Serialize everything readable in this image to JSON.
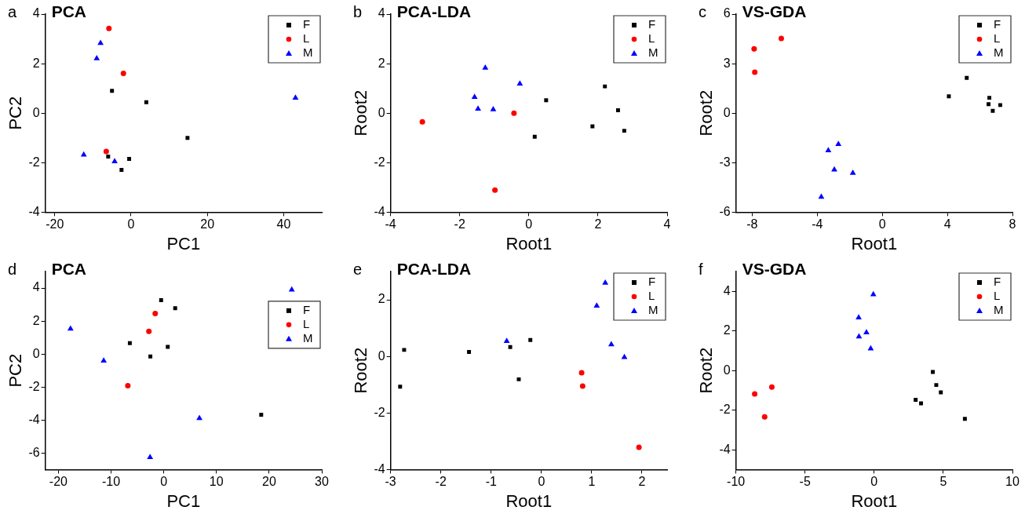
{
  "chart_data": [
    {
      "type": "scatter",
      "title": "PCA",
      "xlabel": "PC1",
      "ylabel": "PC2",
      "annotations": [
        "a"
      ],
      "xlim": [
        -22.5,
        50
      ],
      "xticks": [
        -20,
        0,
        20,
        40
      ],
      "ylim": [
        -4,
        4
      ],
      "yticks": [
        -4,
        -2,
        0,
        2,
        4
      ],
      "grid": false,
      "legend": "top right",
      "series": [
        {
          "name": "F",
          "color": "#000000",
          "marker": "square",
          "x": [
            -5,
            4,
            14.8,
            -6,
            -0.5,
            -2.5
          ],
          "values": [
            0.9,
            0.44,
            -1,
            -1.75,
            -1.85,
            -2.29
          ]
        },
        {
          "name": "L",
          "color": "#ff0000",
          "marker": "circle",
          "x": [
            -5.8,
            -2,
            -6.5
          ],
          "values": [
            3.42,
            1.61,
            -1.55
          ]
        },
        {
          "name": "M",
          "color": "#0000ff",
          "marker": "triangle",
          "x": [
            -8,
            -9,
            43.1,
            -12.4,
            -4.3
          ],
          "values": [
            2.83,
            2.21,
            0.62,
            -1.68,
            -1.95
          ]
        }
      ]
    },
    {
      "type": "scatter",
      "title": "PCA-LDA",
      "xlabel": "Root1",
      "ylabel": "Root2",
      "annotations": [
        "b"
      ],
      "xlim": [
        -4,
        4
      ],
      "xticks": [
        -4,
        -2,
        0,
        2,
        4
      ],
      "ylim": [
        -4,
        4
      ],
      "yticks": [
        -4,
        -2,
        0,
        2,
        4
      ],
      "grid": false,
      "legend": "top right",
      "series": [
        {
          "name": "F",
          "color": "#000000",
          "marker": "square",
          "x": [
            0.5,
            0.17,
            2.2,
            2.58,
            1.84,
            2.76
          ],
          "values": [
            0.52,
            -0.95,
            1.08,
            0.12,
            -0.53,
            -0.71
          ]
        },
        {
          "name": "L",
          "color": "#ff0000",
          "marker": "circle",
          "x": [
            -3.08,
            -0.43,
            -0.98
          ],
          "values": [
            -0.35,
            0,
            -3.11
          ]
        },
        {
          "name": "M",
          "color": "#0000ff",
          "marker": "triangle",
          "x": [
            -1.26,
            -0.26,
            -1.57,
            -1.47,
            -1.03
          ],
          "values": [
            1.83,
            1.19,
            0.65,
            0.17,
            0.15
          ]
        }
      ]
    },
    {
      "type": "scatter",
      "title": "VS-GDA",
      "xlabel": "Root1",
      "ylabel": "Root2",
      "annotations": [
        "c"
      ],
      "xlim": [
        -9,
        8
      ],
      "xticks": [
        -8,
        -4,
        0,
        4,
        8
      ],
      "ylim": [
        -6,
        6
      ],
      "yticks": [
        -6,
        -3,
        0,
        3,
        6
      ],
      "grid": false,
      "legend": "top right",
      "series": [
        {
          "name": "F",
          "color": "#000000",
          "marker": "square",
          "x": [
            4.09,
            5.19,
            6.58,
            6.53,
            6.79,
            7.25
          ],
          "values": [
            1.02,
            2.14,
            0.93,
            0.54,
            0.14,
            0.49
          ]
        },
        {
          "name": "L",
          "color": "#ff0000",
          "marker": "circle",
          "x": [
            -7.88,
            -6.21,
            -7.84
          ],
          "values": [
            3.9,
            4.53,
            2.48
          ]
        },
        {
          "name": "M",
          "color": "#0000ff",
          "marker": "triangle",
          "x": [
            -3.32,
            -2.7,
            -2.95,
            -1.81,
            -3.75
          ],
          "values": [
            -2.26,
            -1.88,
            -3.43,
            -3.63,
            -5.08
          ]
        }
      ]
    },
    {
      "type": "scatter",
      "title": "PCA",
      "xlabel": "PC1",
      "ylabel": "PC2",
      "annotations": [
        "d"
      ],
      "xlim": [
        -22.5,
        30
      ],
      "xticks": [
        -20,
        -10,
        0,
        10,
        20,
        30
      ],
      "ylim": [
        -7,
        5
      ],
      "yticks": [
        -6,
        -4,
        -2,
        0,
        2,
        4
      ],
      "grid": false,
      "legend": "right",
      "series": [
        {
          "name": "F",
          "color": "#000000",
          "marker": "square",
          "x": [
            -0.5,
            2.17,
            -6.44,
            0.76,
            -2.54,
            18.5
          ],
          "values": [
            3.26,
            2.78,
            0.66,
            0.44,
            -0.15,
            -3.68
          ]
        },
        {
          "name": "L",
          "color": "#ff0000",
          "marker": "circle",
          "x": [
            -1.62,
            -2.82,
            -6.82
          ],
          "values": [
            2.46,
            1.38,
            -1.92
          ]
        },
        {
          "name": "M",
          "color": "#0000ff",
          "marker": "triangle",
          "x": [
            24.3,
            -17.7,
            -11.4,
            6.77,
            -2.6
          ],
          "values": [
            3.89,
            1.53,
            -0.41,
            -3.89,
            -6.25
          ]
        }
      ]
    },
    {
      "type": "scatter",
      "title": "PCA-LDA",
      "xlabel": "Root1",
      "ylabel": "Root2",
      "annotations": [
        "e"
      ],
      "xlim": [
        -3,
        2.5
      ],
      "xticks": [
        -3,
        -2,
        -1,
        0,
        1,
        2
      ],
      "ylim": [
        -4,
        3
      ],
      "yticks": [
        -4,
        -2,
        0,
        2
      ],
      "grid": false,
      "legend": "top right",
      "series": [
        {
          "name": "F",
          "color": "#000000",
          "marker": "square",
          "x": [
            -2.73,
            -2.81,
            -1.44,
            -0.62,
            -0.22,
            -0.45
          ],
          "values": [
            0.23,
            -1.07,
            0.16,
            0.33,
            0.58,
            -0.81
          ]
        },
        {
          "name": "L",
          "color": "#ff0000",
          "marker": "circle",
          "x": [
            0.8,
            0.82,
            1.94
          ],
          "values": [
            -0.58,
            -1.05,
            -3.21
          ]
        },
        {
          "name": "M",
          "color": "#0000ff",
          "marker": "triangle",
          "x": [
            -0.69,
            1.27,
            1.1,
            1.39,
            1.65
          ],
          "values": [
            0.54,
            2.6,
            1.79,
            0.42,
            -0.03
          ]
        }
      ]
    },
    {
      "type": "scatter",
      "title": "VS-GDA",
      "xlabel": "Root1",
      "ylabel": "Root2",
      "annotations": [
        "f"
      ],
      "xlim": [
        -10,
        10
      ],
      "xticks": [
        -10,
        -5,
        0,
        5,
        10
      ],
      "ylim": [
        -5,
        5
      ],
      "yticks": [
        -4,
        -2,
        0,
        2,
        4
      ],
      "grid": false,
      "legend": "top right",
      "series": [
        {
          "name": "F",
          "color": "#000000",
          "marker": "square",
          "x": [
            4.24,
            4.49,
            4.82,
            3,
            3.39,
            6.56
          ],
          "values": [
            -0.07,
            -0.73,
            -1.1,
            -1.48,
            -1.66,
            -2.44
          ]
        },
        {
          "name": "L",
          "color": "#ff0000",
          "marker": "circle",
          "x": [
            -8.64,
            -7.4,
            -7.92
          ],
          "values": [
            -1.18,
            -0.83,
            -2.34
          ]
        },
        {
          "name": "M",
          "color": "#0000ff",
          "marker": "triangle",
          "x": [
            -0.06,
            -1.12,
            -0.56,
            -1.1,
            -0.25
          ],
          "values": [
            3.84,
            2.67,
            1.92,
            1.71,
            1.11
          ]
        }
      ]
    }
  ]
}
